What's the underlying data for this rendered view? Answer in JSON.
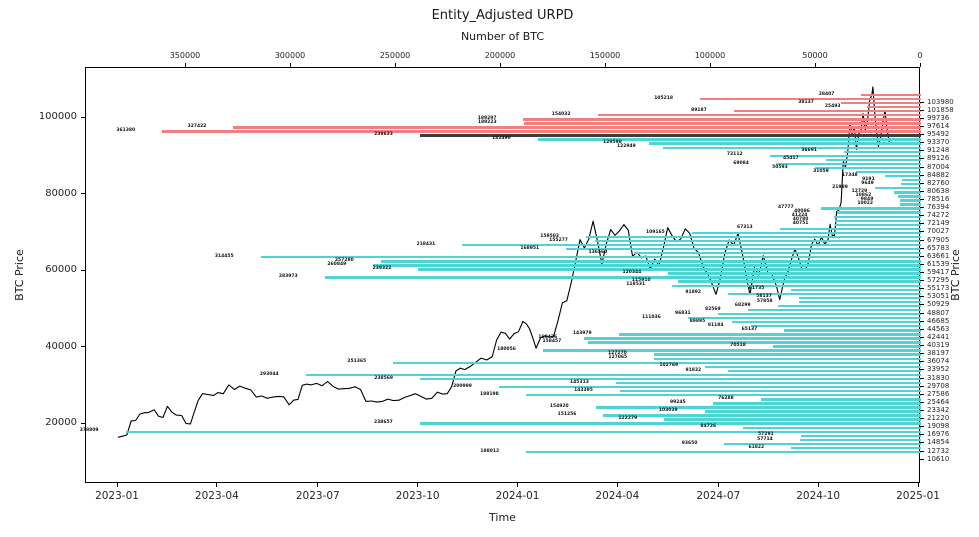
{
  "title": "Entity_Adjusted URPD",
  "axes": {
    "top": {
      "label": "Number of BTC",
      "ticks": [
        350000,
        300000,
        250000,
        200000,
        150000,
        100000,
        50000,
        0
      ]
    },
    "bottom": {
      "label": "Time",
      "ticks": [
        "2023-01",
        "2023-04",
        "2023-07",
        "2023-10",
        "2024-01",
        "2024-04",
        "2024-07",
        "2024-10",
        "2025-01"
      ]
    },
    "left": {
      "label": "BTC Price",
      "ticks": [
        20000,
        40000,
        60000,
        80000,
        100000
      ]
    },
    "right": {
      "label": "BTC Price",
      "ticks": [
        103980,
        101858,
        99736,
        97614,
        95492,
        93370,
        91248,
        89126,
        87004,
        84882,
        82760,
        80638,
        78516,
        76394,
        74272,
        72149,
        70027,
        67905,
        65783,
        63661,
        61539,
        59417,
        57295,
        55173,
        53051,
        50929,
        48807,
        46685,
        44563,
        42441,
        40319,
        38197,
        36074,
        33952,
        31830,
        29708,
        27586,
        25464,
        23342,
        21220,
        19098,
        16976,
        14854,
        12732,
        10610
      ]
    }
  },
  "colors": {
    "supply_above_price": "#f08080",
    "supply_at_price": "#3d3d3d",
    "supply_below_price": "#52d3d3",
    "price_line": "#000000",
    "background": "#ffffff"
  },
  "chart_data": {
    "type": "bar",
    "orientation": "horizontal",
    "title": "Entity_Adjusted URPD",
    "xlabel_top": "Number of BTC",
    "xlabel_bottom": "Time",
    "ylabel": "BTC Price",
    "x_axis_btc_range": [
      350000,
      0
    ],
    "y_axis_price_range": [
      4000,
      113000
    ],
    "bin_width_usd": 1061,
    "bars_format": [
      "price_bin_usd",
      "btc_amount",
      "band"
    ],
    "bars": [
      [
        106102,
        28407,
        "above"
      ],
      [
        105041,
        105218,
        "above"
      ],
      [
        103980,
        38137,
        "above"
      ],
      [
        102919,
        25493,
        "above"
      ],
      [
        101858,
        89187,
        "above"
      ],
      [
        100797,
        154032,
        "above"
      ],
      [
        99736,
        189297,
        "above"
      ],
      [
        98675,
        189223,
        "above"
      ],
      [
        97614,
        327422,
        "above"
      ],
      [
        96553,
        361380,
        "above"
      ],
      [
        95492,
        238633,
        "at"
      ],
      [
        94431,
        182490,
        "below"
      ],
      [
        93370,
        129598,
        "below"
      ],
      [
        92309,
        122949,
        "below"
      ],
      [
        91248,
        36691,
        "below"
      ],
      [
        90187,
        72112,
        "below"
      ],
      [
        89126,
        45417,
        "below"
      ],
      [
        88065,
        69084,
        "below"
      ],
      [
        87004,
        50593,
        "below"
      ],
      [
        85943,
        31059,
        "below"
      ],
      [
        84882,
        17348,
        "below"
      ],
      [
        83821,
        9191,
        "below"
      ],
      [
        82760,
        9649,
        "below"
      ],
      [
        81699,
        21989,
        "below"
      ],
      [
        80638,
        12729,
        "below"
      ],
      [
        79577,
        10862,
        "below"
      ],
      [
        78516,
        9849,
        "below"
      ],
      [
        77455,
        10022,
        "below"
      ],
      [
        76394,
        47777,
        "below"
      ],
      [
        75333,
        40086,
        "below"
      ],
      [
        74272,
        41224,
        "below"
      ],
      [
        73211,
        40780,
        "below"
      ],
      [
        72149,
        40751,
        "below"
      ],
      [
        71088,
        67313,
        "below"
      ],
      [
        70027,
        109165,
        "below"
      ],
      [
        68966,
        159503,
        "below"
      ],
      [
        67905,
        155277,
        "below"
      ],
      [
        66844,
        218431,
        "below"
      ],
      [
        65783,
        168951,
        "below"
      ],
      [
        64722,
        136560,
        "below"
      ],
      [
        63661,
        314455,
        "below"
      ],
      [
        62600,
        257280,
        "below"
      ],
      [
        61539,
        260849,
        "below"
      ],
      [
        60478,
        239322,
        "below"
      ],
      [
        59417,
        120344,
        "below"
      ],
      [
        58356,
        283973,
        "below"
      ],
      [
        57295,
        115910,
        "below"
      ],
      [
        56234,
        118531,
        "below"
      ],
      [
        55173,
        61735,
        "below"
      ],
      [
        54112,
        91892,
        "below"
      ],
      [
        53051,
        58137,
        "below"
      ],
      [
        51990,
        57858,
        "below"
      ],
      [
        50929,
        68299,
        "below"
      ],
      [
        49868,
        82569,
        "below"
      ],
      [
        48807,
        96831,
        "below"
      ],
      [
        47746,
        111036,
        "below"
      ],
      [
        46685,
        89895,
        "below"
      ],
      [
        45624,
        81184,
        "below"
      ],
      [
        44563,
        65137,
        "below"
      ],
      [
        43502,
        143979,
        "below"
      ],
      [
        42441,
        160426,
        "below"
      ],
      [
        41380,
        158457,
        "below"
      ],
      [
        40319,
        70518,
        "below"
      ],
      [
        39258,
        180056,
        "below"
      ],
      [
        38197,
        127270,
        "below"
      ],
      [
        37136,
        127065,
        "below"
      ],
      [
        36074,
        251365,
        "below"
      ],
      [
        35013,
        102769,
        "below"
      ],
      [
        33952,
        91832,
        "below"
      ],
      [
        32891,
        293044,
        "below"
      ],
      [
        31830,
        238569,
        "below"
      ],
      [
        30769,
        145313,
        "below"
      ],
      [
        29708,
        200999,
        "below"
      ],
      [
        28647,
        143395,
        "below"
      ],
      [
        27586,
        188198,
        "below"
      ],
      [
        26525,
        76288,
        "below"
      ],
      [
        25464,
        99245,
        "below"
      ],
      [
        24403,
        154920,
        "below"
      ],
      [
        23342,
        103039,
        "below"
      ],
      [
        22281,
        151256,
        "below"
      ],
      [
        21220,
        122279,
        "below"
      ],
      [
        20159,
        238657,
        "below"
      ],
      [
        19098,
        84726,
        "below"
      ],
      [
        18037,
        378809,
        "below"
      ],
      [
        16976,
        57291,
        "below"
      ],
      [
        15915,
        57714,
        "below"
      ],
      [
        14854,
        93650,
        "below"
      ],
      [
        13793,
        61822,
        "below"
      ],
      [
        12732,
        188012,
        "below"
      ]
    ],
    "price_line": {
      "name": "BTC Price",
      "x_unit": "days_since_2023-01",
      "points": [
        [
          0,
          16600
        ],
        [
          4,
          16900
        ],
        [
          8,
          17200
        ],
        [
          12,
          20900
        ],
        [
          16,
          21000
        ],
        [
          20,
          22700
        ],
        [
          24,
          23000
        ],
        [
          28,
          23100
        ],
        [
          33,
          23800
        ],
        [
          37,
          22100
        ],
        [
          41,
          21800
        ],
        [
          45,
          24700
        ],
        [
          49,
          23200
        ],
        [
          53,
          22400
        ],
        [
          58,
          22300
        ],
        [
          62,
          20200
        ],
        [
          66,
          20100
        ],
        [
          70,
          23600
        ],
        [
          73,
          26200
        ],
        [
          77,
          28000
        ],
        [
          82,
          27800
        ],
        [
          87,
          27500
        ],
        [
          91,
          28300
        ],
        [
          96,
          28000
        ],
        [
          101,
          30300
        ],
        [
          106,
          29100
        ],
        [
          111,
          30000
        ],
        [
          116,
          29400
        ],
        [
          121,
          29000
        ],
        [
          126,
          27100
        ],
        [
          131,
          27400
        ],
        [
          136,
          26800
        ],
        [
          141,
          27100
        ],
        [
          146,
          27300
        ],
        [
          151,
          27200
        ],
        [
          156,
          25100
        ],
        [
          160,
          26300
        ],
        [
          164,
          26500
        ],
        [
          168,
          30200
        ],
        [
          172,
          30500
        ],
        [
          176,
          30300
        ],
        [
          181,
          30700
        ],
        [
          186,
          30100
        ],
        [
          191,
          31200
        ],
        [
          196,
          29900
        ],
        [
          201,
          29200
        ],
        [
          206,
          29300
        ],
        [
          211,
          29400
        ],
        [
          216,
          29800
        ],
        [
          221,
          29100
        ],
        [
          226,
          26000
        ],
        [
          231,
          26100
        ],
        [
          236,
          25800
        ],
        [
          241,
          26000
        ],
        [
          246,
          26600
        ],
        [
          251,
          26200
        ],
        [
          256,
          26300
        ],
        [
          261,
          27000
        ],
        [
          266,
          27500
        ],
        [
          271,
          28000
        ],
        [
          276,
          27300
        ],
        [
          281,
          26600
        ],
        [
          286,
          26800
        ],
        [
          291,
          28400
        ],
        [
          296,
          27900
        ],
        [
          300,
          28000
        ],
        [
          304,
          29800
        ],
        [
          308,
          34000
        ],
        [
          312,
          34700
        ],
        [
          316,
          34300
        ],
        [
          321,
          35100
        ],
        [
          326,
          36200
        ],
        [
          331,
          37300
        ],
        [
          336,
          36800
        ],
        [
          341,
          37700
        ],
        [
          345,
          42000
        ],
        [
          349,
          44100
        ],
        [
          353,
          43800
        ],
        [
          357,
          42300
        ],
        [
          361,
          43700
        ],
        [
          365,
          44200
        ],
        [
          369,
          46900
        ],
        [
          372,
          46300
        ],
        [
          375,
          45000
        ],
        [
          378,
          42600
        ],
        [
          381,
          39900
        ],
        [
          385,
          42600
        ],
        [
          389,
          43100
        ],
        [
          393,
          42800
        ],
        [
          397,
          43000
        ],
        [
          401,
          47100
        ],
        [
          405,
          51800
        ],
        [
          409,
          52300
        ],
        [
          413,
          57000
        ],
        [
          417,
          62500
        ],
        [
          421,
          68300
        ],
        [
          425,
          66100
        ],
        [
          429,
          68400
        ],
        [
          433,
          73100
        ],
        [
          437,
          67900
        ],
        [
          441,
          61900
        ],
        [
          445,
          67200
        ],
        [
          449,
          70900
        ],
        [
          453,
          69400
        ],
        [
          457,
          70600
        ],
        [
          461,
          72200
        ],
        [
          465,
          70800
        ],
        [
          469,
          63900
        ],
        [
          473,
          65000
        ],
        [
          477,
          63500
        ],
        [
          481,
          64000
        ],
        [
          485,
          60600
        ],
        [
          489,
          63200
        ],
        [
          493,
          61500
        ],
        [
          497,
          66200
        ],
        [
          501,
          71400
        ],
        [
          505,
          69300
        ],
        [
          509,
          67700
        ],
        [
          513,
          68500
        ],
        [
          517,
          71100
        ],
        [
          521,
          69900
        ],
        [
          525,
          66000
        ],
        [
          529,
          64900
        ],
        [
          533,
          61300
        ],
        [
          537,
          59500
        ],
        [
          541,
          57000
        ],
        [
          545,
          54000
        ],
        [
          549,
          58200
        ],
        [
          553,
          64700
        ],
        [
          557,
          68200
        ],
        [
          561,
          66800
        ],
        [
          565,
          69900
        ],
        [
          569,
          64600
        ],
        [
          573,
          58000
        ],
        [
          576,
          53900
        ],
        [
          580,
          61000
        ],
        [
          584,
          59000
        ],
        [
          588,
          64100
        ],
        [
          592,
          59800
        ],
        [
          596,
          59100
        ],
        [
          600,
          56200
        ],
        [
          603,
          52600
        ],
        [
          607,
          57600
        ],
        [
          611,
          60300
        ],
        [
          614,
          63300
        ],
        [
          617,
          65800
        ],
        [
          620,
          63600
        ],
        [
          623,
          60800
        ],
        [
          626,
          60300
        ],
        [
          629,
          62100
        ],
        [
          632,
          67000
        ],
        [
          635,
          68400
        ],
        [
          638,
          66700
        ],
        [
          641,
          69000
        ],
        [
          644,
          67100
        ],
        [
          647,
          68200
        ],
        [
          649,
          72300
        ],
        [
          651,
          69300
        ],
        [
          653,
          69400
        ],
        [
          655,
          75600
        ],
        [
          657,
          76000
        ],
        [
          659,
          78000
        ],
        [
          661,
          88700
        ],
        [
          663,
          87300
        ],
        [
          665,
          91000
        ],
        [
          667,
          98400
        ],
        [
          669,
          95900
        ],
        [
          671,
          97700
        ],
        [
          673,
          91900
        ],
        [
          675,
          95900
        ],
        [
          677,
          96600
        ],
        [
          679,
          101200
        ],
        [
          681,
          96900
        ],
        [
          683,
          99400
        ],
        [
          685,
          104800
        ],
        [
          687,
          106100
        ],
        [
          688,
          108200
        ],
        [
          690,
          100200
        ],
        [
          691,
          97500
        ],
        [
          693,
          92600
        ],
        [
          695,
          95200
        ],
        [
          697,
          98600
        ],
        [
          699,
          102100
        ],
        [
          701,
          96900
        ],
        [
          703,
          93500
        ]
      ]
    }
  }
}
